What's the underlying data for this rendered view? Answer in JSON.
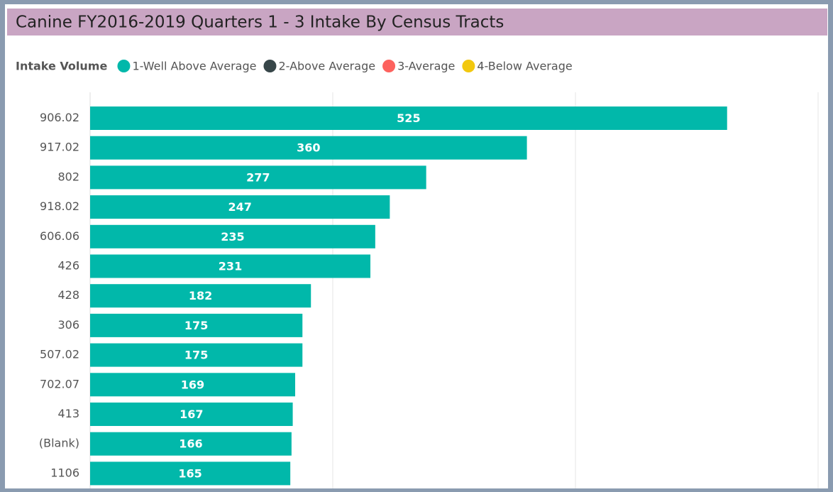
{
  "chart_data": {
    "type": "bar",
    "orientation": "horizontal",
    "title": "Canine FY2016-2019 Quarters 1 - 3 Intake By Census Tracts",
    "legend": {
      "title": "Intake Volume",
      "items": [
        {
          "name": "1-Well Above Average",
          "color": "#01b8aa"
        },
        {
          "name": "2-Above Average",
          "color": "#374649"
        },
        {
          "name": "3-Average",
          "color": "#fd625e"
        },
        {
          "name": "4-Below Average",
          "color": "#f2c80f"
        }
      ]
    },
    "categories": [
      "906.02",
      "917.02",
      "802",
      "918.02",
      "606.06",
      "426",
      "428",
      "306",
      "507.02",
      "702.07",
      "413",
      "(Blank)",
      "1106"
    ],
    "values": [
      525,
      360,
      277,
      247,
      235,
      231,
      182,
      175,
      175,
      169,
      167,
      166,
      165
    ],
    "color": "#01b8aa",
    "xlim": [
      0,
      600
    ],
    "xticks": [
      0,
      200,
      400,
      600
    ],
    "grid": true
  }
}
